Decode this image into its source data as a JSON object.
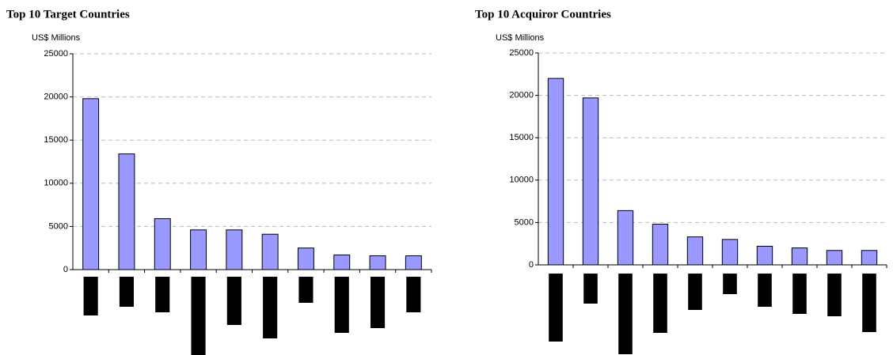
{
  "chart_data": [
    {
      "type": "bar",
      "title": "Top 10 Target Countries",
      "y_label": "US$ Millions",
      "categories": [
        null,
        null,
        null,
        null,
        null,
        null,
        null,
        null,
        null,
        null
      ],
      "values": [
        19800,
        13400,
        5900,
        4600,
        4600,
        4100,
        2500,
        1700,
        1600,
        1600
      ],
      "color": "#9999ff",
      "ylim": [
        0,
        25000
      ],
      "yticks": [
        0,
        5000,
        10000,
        15000,
        20000,
        25000
      ],
      "grid": true
    },
    {
      "type": "bar",
      "title": "Top 10 Acquiror Countries",
      "y_label": "US$ Millions",
      "categories": [
        null,
        null,
        null,
        null,
        null,
        null,
        null,
        null,
        null,
        null
      ],
      "values": [
        22000,
        19700,
        6400,
        4800,
        3300,
        3000,
        2200,
        2000,
        1700,
        1700
      ],
      "color": "#9999ff",
      "ylim": [
        0,
        25000
      ],
      "yticks": [
        0,
        5000,
        10000,
        15000,
        20000,
        25000
      ],
      "grid": true
    }
  ]
}
